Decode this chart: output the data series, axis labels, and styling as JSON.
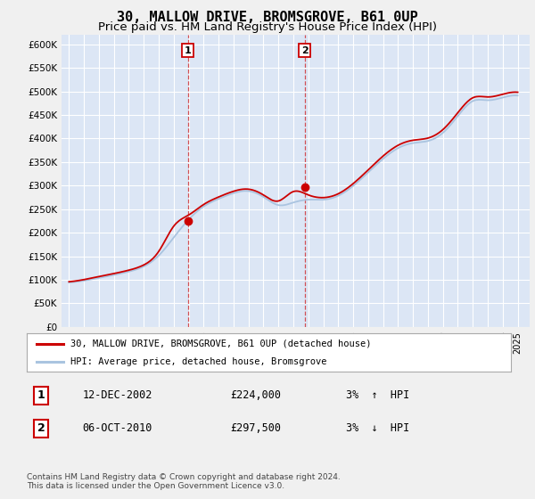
{
  "title": "30, MALLOW DRIVE, BROMSGROVE, B61 0UP",
  "subtitle": "Price paid vs. HM Land Registry's House Price Index (HPI)",
  "ylabel_ticks": [
    "£0",
    "£50K",
    "£100K",
    "£150K",
    "£200K",
    "£250K",
    "£300K",
    "£350K",
    "£400K",
    "£450K",
    "£500K",
    "£550K",
    "£600K"
  ],
  "ytick_vals": [
    0,
    50000,
    100000,
    150000,
    200000,
    250000,
    300000,
    350000,
    400000,
    450000,
    500000,
    550000,
    600000
  ],
  "plot_bg": "#dce6f5",
  "fig_bg": "#f0f0f0",
  "grid_color": "#ffffff",
  "red_line_color": "#cc0000",
  "blue_line_color": "#aac4e0",
  "legend_label1": "30, MALLOW DRIVE, BROMSGROVE, B61 0UP (detached house)",
  "legend_label2": "HPI: Average price, detached house, Bromsgrove",
  "transaction1_date": "12-DEC-2002",
  "transaction1_price": "£224,000",
  "transaction1_hpi": "3%  ↑  HPI",
  "transaction1_value": 224000,
  "transaction1_year": 2002.95,
  "transaction2_date": "06-OCT-2010",
  "transaction2_price": "£297,500",
  "transaction2_hpi": "3%  ↓  HPI",
  "transaction2_value": 297500,
  "transaction2_year": 2010.75,
  "footnote": "Contains HM Land Registry data © Crown copyright and database right 2024.\nThis data is licensed under the Open Government Licence v3.0.",
  "hpi_years": [
    1995,
    1996,
    1997,
    1998,
    1999,
    2000,
    2001,
    2002,
    2003,
    2004,
    2005,
    2006,
    2007,
    2008,
    2009,
    2010,
    2011,
    2012,
    2013,
    2014,
    2015,
    2016,
    2017,
    2018,
    2019,
    2020,
    2021,
    2022,
    2023,
    2024,
    2025
  ],
  "hpi_values": [
    93000,
    98000,
    104000,
    110000,
    117000,
    126000,
    148000,
    190000,
    230000,
    258000,
    272000,
    285000,
    292000,
    278000,
    252000,
    265000,
    272000,
    268000,
    276000,
    298000,
    328000,
    358000,
    382000,
    392000,
    392000,
    408000,
    448000,
    488000,
    478000,
    488000,
    492000
  ],
  "prop_values": [
    95000,
    100000,
    107000,
    113000,
    120000,
    129000,
    152000,
    224000,
    235000,
    262000,
    276000,
    289000,
    296000,
    282000,
    256000,
    297500,
    278000,
    272000,
    280000,
    303000,
    333000,
    364000,
    388000,
    398000,
    398000,
    415000,
    455000,
    495000,
    485000,
    495000,
    499000
  ],
  "xlim_min": 1994.5,
  "xlim_max": 2025.8,
  "ylim_min": 0,
  "ylim_max": 620000
}
